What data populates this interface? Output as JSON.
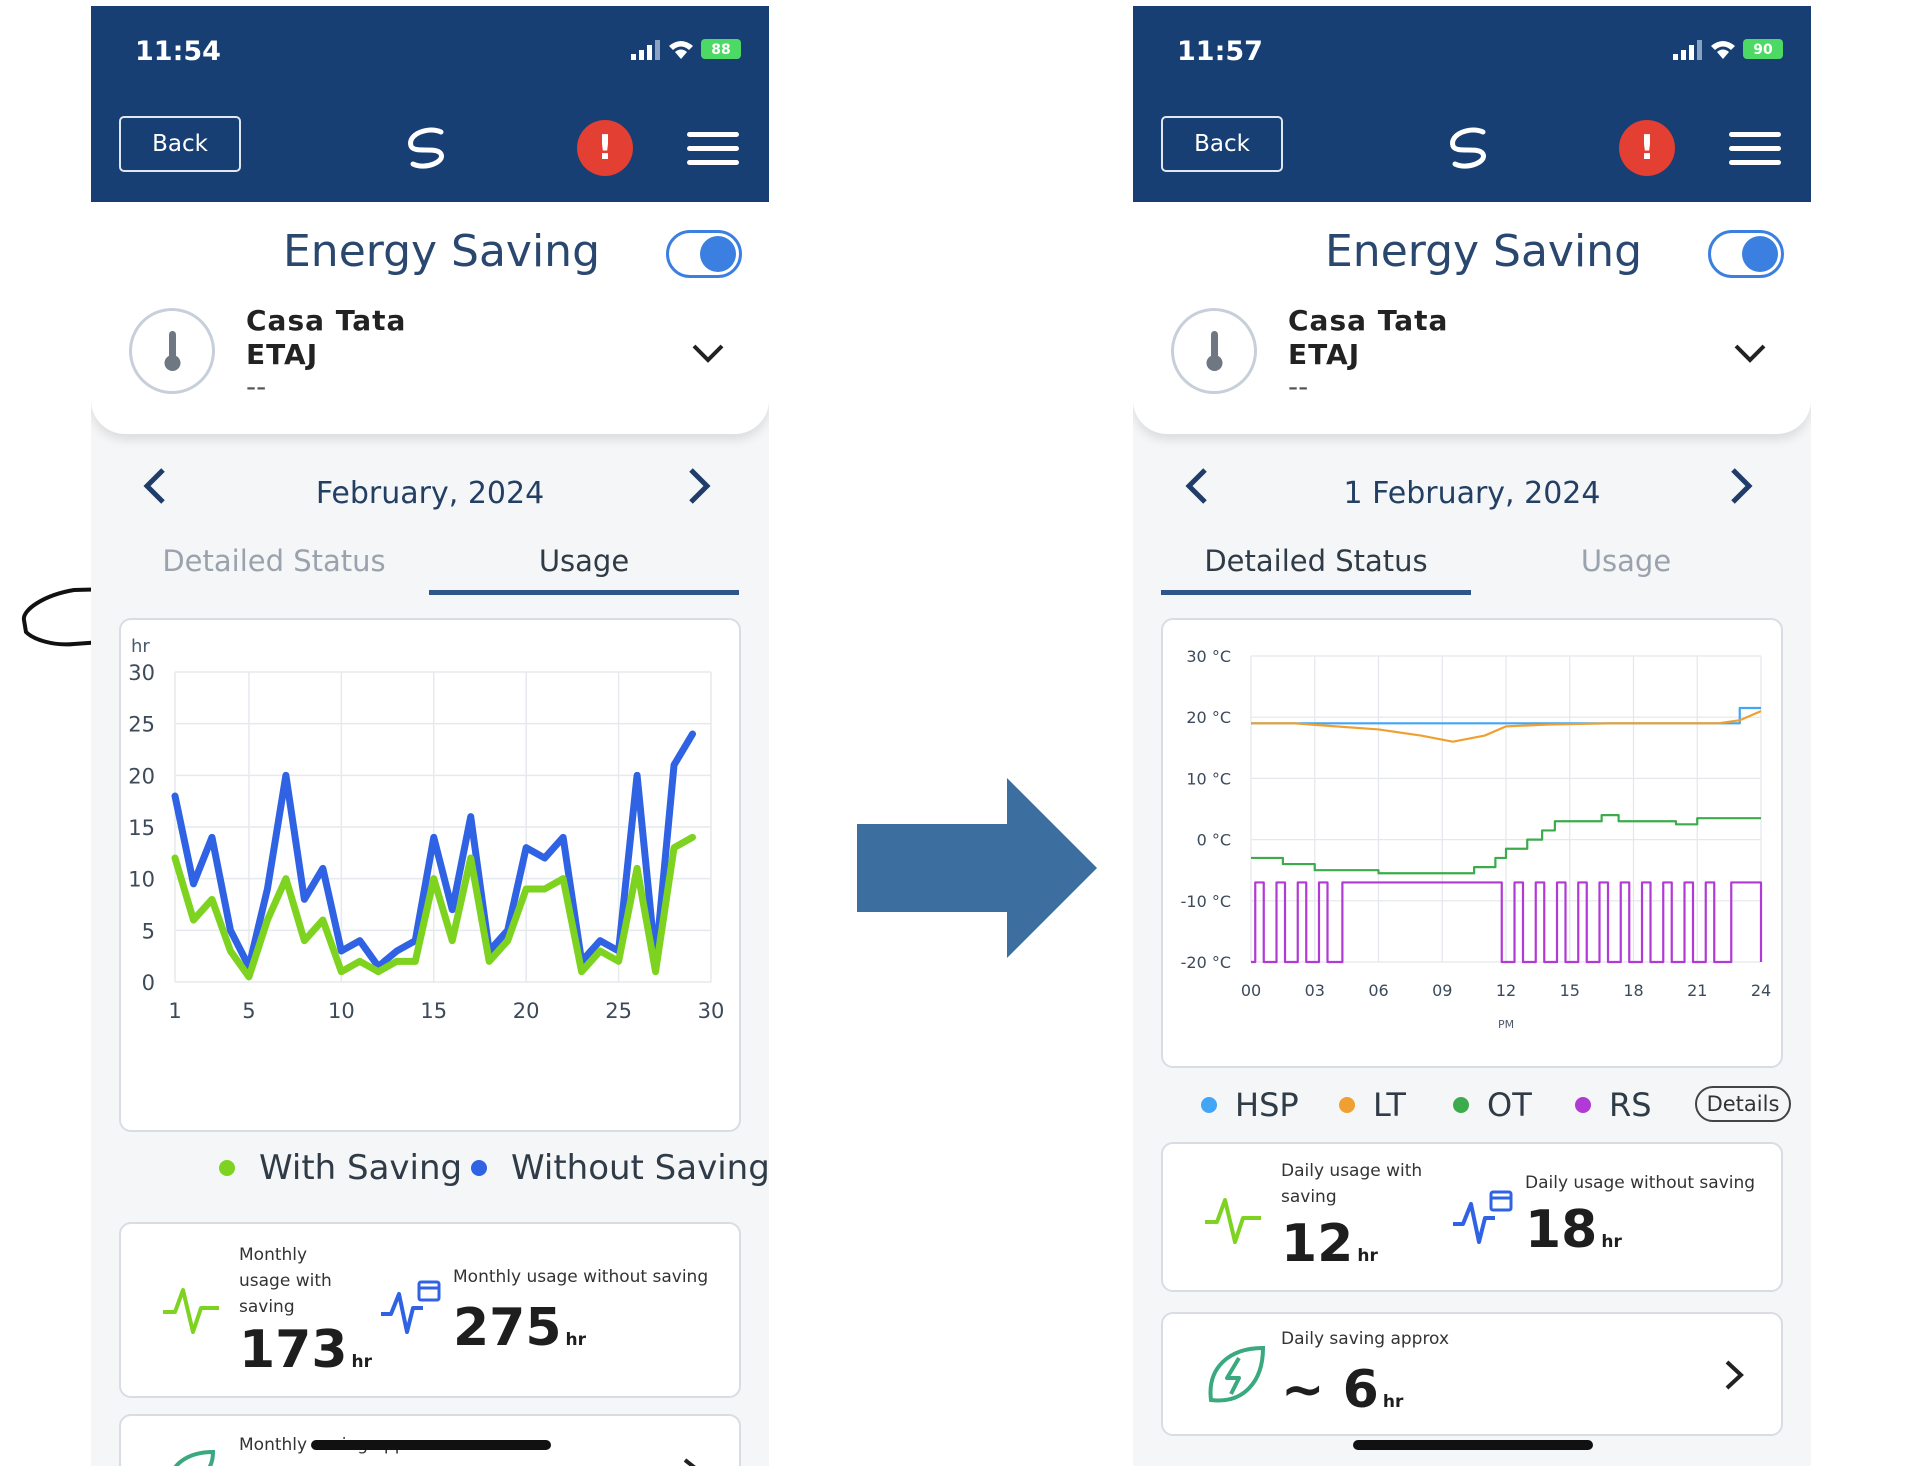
{
  "left": {
    "status": {
      "time": "11:54",
      "battery": "88"
    },
    "nav": {
      "back_label": "Back",
      "alert_label": "!"
    },
    "header": {
      "title": "Energy Saving",
      "toggle_on": true
    },
    "device": {
      "name": "Casa Tata",
      "floor": "ETAJ",
      "temp": "--"
    },
    "period": {
      "label": "February, 2024"
    },
    "tabs": [
      {
        "label": "Detailed Status",
        "active": false
      },
      {
        "label": "Usage",
        "active": true
      }
    ],
    "chart_unit": "hr",
    "legend": [
      {
        "label": "With Saving",
        "color": "#7ed321"
      },
      {
        "label": "Without Saving",
        "color": "#2f63e4"
      }
    ],
    "stats": {
      "with_label": "Monthly usage with saving",
      "with_value": "173",
      "without_label": "Monthly usage without saving",
      "without_value": "275",
      "unit": "hr"
    },
    "saving": {
      "label": "Monthly saving approx"
    }
  },
  "right": {
    "status": {
      "time": "11:57",
      "battery": "90"
    },
    "nav": {
      "back_label": "Back",
      "alert_label": "!"
    },
    "header": {
      "title": "Energy Saving",
      "toggle_on": true
    },
    "device": {
      "name": "Casa Tata",
      "floor": "ETAJ",
      "temp": "--"
    },
    "period": {
      "label": "1 February, 2024"
    },
    "tabs": [
      {
        "label": "Detailed Status",
        "active": true
      },
      {
        "label": "Usage",
        "active": false
      }
    ],
    "legend": [
      {
        "label": "HSP",
        "color": "#42a5f5"
      },
      {
        "label": "LT",
        "color": "#f0a030"
      },
      {
        "label": "OT",
        "color": "#3cab4c"
      },
      {
        "label": "RS",
        "color": "#b13ad6"
      }
    ],
    "details_label": "Details",
    "stats": {
      "with_label": "Daily usage with saving",
      "with_value": "12",
      "without_label": "Daily usage without saving",
      "without_value": "18",
      "unit": "hr"
    },
    "saving": {
      "label": "Daily saving approx",
      "value": "~ 6",
      "unit": "hr"
    }
  },
  "chart_data": [
    {
      "type": "line",
      "title": "",
      "xlabel": "",
      "ylabel": "hr",
      "x_ticks": [
        1,
        5,
        10,
        15,
        20,
        25,
        30
      ],
      "y_ticks": [
        0,
        5,
        10,
        15,
        20,
        25,
        30
      ],
      "xlim": [
        1,
        30
      ],
      "ylim": [
        0,
        30
      ],
      "grid": true,
      "legend_position": "bottom",
      "x": [
        1,
        2,
        3,
        4,
        5,
        6,
        7,
        8,
        9,
        10,
        11,
        12,
        13,
        14,
        15,
        16,
        17,
        18,
        19,
        20,
        21,
        22,
        23,
        24,
        25,
        26,
        27,
        28,
        29
      ],
      "series": [
        {
          "name": "Without Saving",
          "color": "#2f63e4",
          "values": [
            18,
            9.5,
            14,
            5,
            1.5,
            9,
            20,
            8,
            11,
            3,
            4,
            1.5,
            3,
            4,
            14,
            7,
            16,
            3,
            5,
            13,
            12,
            14,
            2,
            4,
            3,
            20,
            2,
            21,
            24
          ]
        },
        {
          "name": "With Saving",
          "color": "#7ed321",
          "values": [
            12,
            6,
            8,
            3,
            0.5,
            6,
            10,
            4,
            6,
            1,
            2,
            1,
            2,
            2,
            10,
            4,
            12,
            2,
            4,
            9,
            9,
            10,
            1,
            3,
            2,
            11,
            1,
            13,
            14
          ]
        }
      ]
    },
    {
      "type": "line",
      "title": "",
      "xlabel": "PM",
      "ylabel": "",
      "x_ticks": [
        "00",
        "03",
        "06",
        "09",
        "12",
        "15",
        "18",
        "21",
        "24"
      ],
      "y_ticks": [
        "30 °C",
        "20 °C",
        "10 °C",
        "0 °C",
        "-10 °C",
        "-20 °C"
      ],
      "xlim": [
        0,
        24
      ],
      "ylim": [
        -20,
        30
      ],
      "grid": true,
      "legend_position": "bottom",
      "series": [
        {
          "name": "HSP",
          "color": "#42a5f5",
          "points": [
            [
              0,
              19
            ],
            [
              23,
              19
            ],
            [
              23,
              21.5
            ],
            [
              24,
              21.5
            ]
          ]
        },
        {
          "name": "LT",
          "color": "#f0a030",
          "points": [
            [
              0,
              19
            ],
            [
              2,
              19
            ],
            [
              4,
              18.5
            ],
            [
              6,
              18
            ],
            [
              8,
              17
            ],
            [
              9.5,
              16
            ],
            [
              11,
              17
            ],
            [
              12,
              18.5
            ],
            [
              14,
              18.8
            ],
            [
              17,
              19
            ],
            [
              20,
              19
            ],
            [
              22,
              19
            ],
            [
              23,
              19.5
            ],
            [
              24,
              21
            ]
          ]
        },
        {
          "name": "OT",
          "color": "#3cab4c",
          "points": [
            [
              0,
              -3
            ],
            [
              1.5,
              -3
            ],
            [
              1.5,
              -4
            ],
            [
              3,
              -4
            ],
            [
              3,
              -5
            ],
            [
              6,
              -5
            ],
            [
              6,
              -5.5
            ],
            [
              10.5,
              -5.5
            ],
            [
              10.5,
              -4.5
            ],
            [
              11.5,
              -4.5
            ],
            [
              11.5,
              -3
            ],
            [
              12,
              -3
            ],
            [
              12,
              -1.5
            ],
            [
              13,
              -1.5
            ],
            [
              13,
              0
            ],
            [
              13.7,
              0
            ],
            [
              13.7,
              1.5
            ],
            [
              14.3,
              1.5
            ],
            [
              14.3,
              3
            ],
            [
              16.5,
              3
            ],
            [
              16.5,
              4
            ],
            [
              17.3,
              4
            ],
            [
              17.3,
              3
            ],
            [
              20,
              3
            ],
            [
              20,
              2.5
            ],
            [
              21,
              2.5
            ],
            [
              21,
              3.5
            ],
            [
              24,
              3.5
            ]
          ]
        },
        {
          "name": "RS",
          "color": "#b13ad6",
          "mode": "step",
          "high": -7,
          "low": -20,
          "high_intervals": [
            [
              0.2,
              0.6
            ],
            [
              1.2,
              1.6
            ],
            [
              2.2,
              2.6
            ],
            [
              3.2,
              3.6
            ],
            [
              4.3,
              11.8
            ],
            [
              12.4,
              12.8
            ],
            [
              13.4,
              13.8
            ],
            [
              14.4,
              14.8
            ],
            [
              15.4,
              15.8
            ],
            [
              16.4,
              16.8
            ],
            [
              17.4,
              17.8
            ],
            [
              18.4,
              18.8
            ],
            [
              19.4,
              19.8
            ],
            [
              20.4,
              20.8
            ],
            [
              21.4,
              21.8
            ],
            [
              22.6,
              24
            ]
          ]
        }
      ]
    }
  ]
}
